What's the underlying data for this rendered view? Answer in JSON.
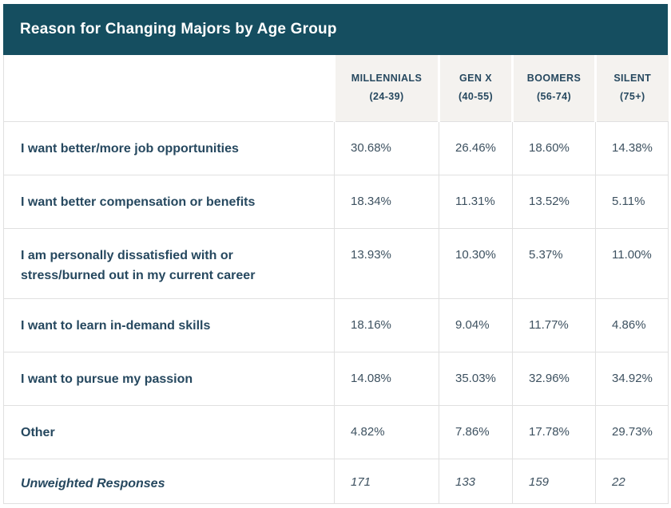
{
  "table": {
    "title": "Reason for Changing Majors by Age Group",
    "columns": [
      {
        "label": "MILLENNIALS",
        "range": "(24-39)"
      },
      {
        "label": "GEN X",
        "range": "(40-55)"
      },
      {
        "label": "BOOMERS",
        "range": "(56-74)"
      },
      {
        "label": "SILENT",
        "range": "(75+)"
      }
    ],
    "rows": [
      {
        "label": "I want better/more job opportunities",
        "values": [
          "30.68%",
          "26.46%",
          "18.60%",
          "14.38%"
        ],
        "italic": false
      },
      {
        "label": "I want better compensation or benefits",
        "values": [
          "18.34%",
          "11.31%",
          "13.52%",
          "5.11%"
        ],
        "italic": false
      },
      {
        "label": "I am personally dissatisfied with or stress/burned out in my current career",
        "values": [
          "13.93%",
          "10.30%",
          "5.37%",
          "11.00%"
        ],
        "italic": false
      },
      {
        "label": "I want to learn in-demand skills",
        "values": [
          "18.16%",
          "9.04%",
          "11.77%",
          "4.86%"
        ],
        "italic": false
      },
      {
        "label": "I want to pursue my passion",
        "values": [
          "14.08%",
          "35.03%",
          "32.96%",
          "34.92%"
        ],
        "italic": false
      },
      {
        "label": "Other",
        "values": [
          "4.82%",
          "7.86%",
          "17.78%",
          "29.73%"
        ],
        "italic": false
      },
      {
        "label": "Unweighted Responses",
        "values": [
          "171",
          "133",
          "159",
          "22"
        ],
        "italic": true
      }
    ],
    "colors": {
      "title_bar_bg": "#154e60",
      "title_text": "#ffffff",
      "column_header_bg": "#f4f2ef",
      "heading_text": "#26485f",
      "value_text": "#3d5160",
      "grid_border": "#e0e0e0",
      "page_bg": "#ffffff"
    }
  },
  "chart_data": {
    "type": "table",
    "title": "Reason for Changing Majors by Age Group",
    "columns": [
      "MILLENNIALS (24-39)",
      "GEN X (40-55)",
      "BOOMERS (56-74)",
      "SILENT (75+)"
    ],
    "row_labels": [
      "I want better/more job opportunities",
      "I want better compensation or benefits",
      "I am personally dissatisfied with or stress/burned out in my current career",
      "I want to learn in-demand skills",
      "I want to pursue my passion",
      "Other",
      "Unweighted Responses"
    ],
    "values_pct": [
      [
        30.68,
        26.46,
        18.6,
        14.38
      ],
      [
        18.34,
        11.31,
        13.52,
        5.11
      ],
      [
        13.93,
        10.3,
        5.37,
        11.0
      ],
      [
        18.16,
        9.04,
        11.77,
        4.86
      ],
      [
        14.08,
        35.03,
        32.96,
        34.92
      ],
      [
        4.82,
        7.86,
        17.78,
        29.73
      ]
    ],
    "unweighted_responses": [
      171,
      133,
      159,
      22
    ],
    "layout": {
      "header_position": "top",
      "grid": true,
      "summary_row_italic": true
    }
  }
}
